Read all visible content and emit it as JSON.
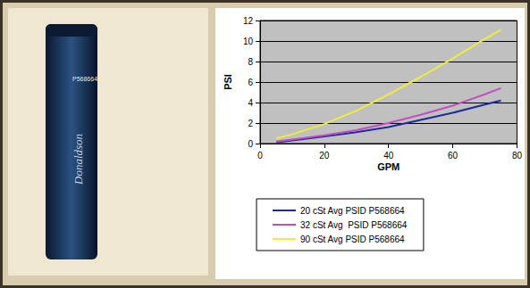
{
  "annotations": [
    "Donaldson",
    "P568664"
  ],
  "chart_data": {
    "type": "line",
    "xlabel": "GPM",
    "ylabel": "PSI",
    "x": [
      5,
      10,
      20,
      30,
      40,
      50,
      60,
      70,
      75
    ],
    "series": [
      {
        "name": "20 cSt Avg PSID P568664",
        "color": "#1f2a9c",
        "values": [
          0.1,
          0.3,
          0.7,
          1.1,
          1.6,
          2.3,
          3.0,
          3.8,
          4.2
        ]
      },
      {
        "name": "32 cSt Avg  PSID P568664",
        "color": "#c24fc2",
        "values": [
          0.2,
          0.4,
          0.8,
          1.3,
          2.0,
          2.8,
          3.7,
          4.8,
          5.4
        ]
      },
      {
        "name": "90 cSt Avg PSID P568664",
        "color": "#eeee3a",
        "values": [
          0.5,
          0.9,
          1.9,
          3.2,
          4.8,
          6.5,
          8.3,
          10.2,
          11.1
        ]
      }
    ],
    "xlim": [
      0,
      80
    ],
    "xticks": [
      0,
      20,
      40,
      60,
      80
    ],
    "ylim": [
      0,
      12
    ],
    "yticks": [
      0,
      2,
      4,
      6,
      8,
      10,
      12
    ],
    "grid": true,
    "legend": "bottom"
  }
}
